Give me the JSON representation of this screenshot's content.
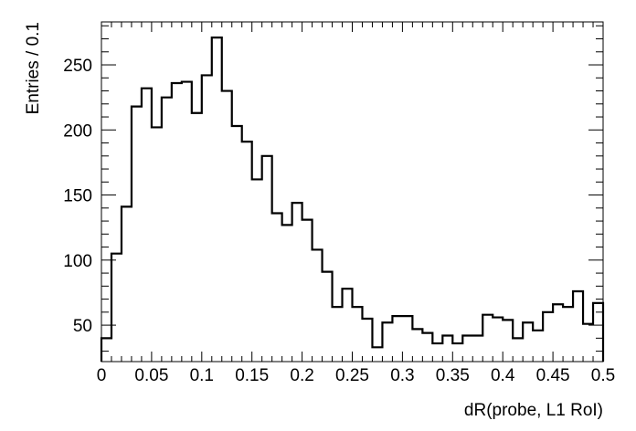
{
  "chart_data": {
    "type": "bar",
    "style": "step-histogram",
    "xlabel": "dR(probe, L1 RoI)",
    "ylabel": "Entries / 0.1",
    "xlim": [
      0,
      0.5
    ],
    "ylim": [
      22,
      283
    ],
    "bin_width": 0.01,
    "x_ticks": [
      {
        "value": 0,
        "label": "0"
      },
      {
        "value": 0.05,
        "label": "0.05"
      },
      {
        "value": 0.1,
        "label": "0.1"
      },
      {
        "value": 0.15,
        "label": "0.15"
      },
      {
        "value": 0.2,
        "label": "0.2"
      },
      {
        "value": 0.25,
        "label": "0.25"
      },
      {
        "value": 0.3,
        "label": "0.3"
      },
      {
        "value": 0.35,
        "label": "0.35"
      },
      {
        "value": 0.4,
        "label": "0.4"
      },
      {
        "value": 0.45,
        "label": "0.45"
      },
      {
        "value": 0.5,
        "label": "0.5"
      }
    ],
    "y_ticks": [
      {
        "value": 50,
        "label": "50"
      },
      {
        "value": 100,
        "label": "100"
      },
      {
        "value": 150,
        "label": "150"
      },
      {
        "value": 200,
        "label": "200"
      },
      {
        "value": 250,
        "label": "250"
      }
    ],
    "bin_edges_start": 0,
    "values": [
      40,
      105,
      141,
      218,
      232,
      202,
      225,
      236,
      237,
      213,
      242,
      271,
      230,
      203,
      191,
      162,
      180,
      136,
      127,
      144,
      131,
      108,
      91,
      64,
      78,
      64,
      55,
      33,
      52,
      57,
      57,
      47,
      44,
      36,
      42,
      36,
      42,
      42,
      58,
      56,
      54,
      40,
      52,
      46,
      60,
      66,
      64,
      76,
      51,
      67
    ]
  }
}
